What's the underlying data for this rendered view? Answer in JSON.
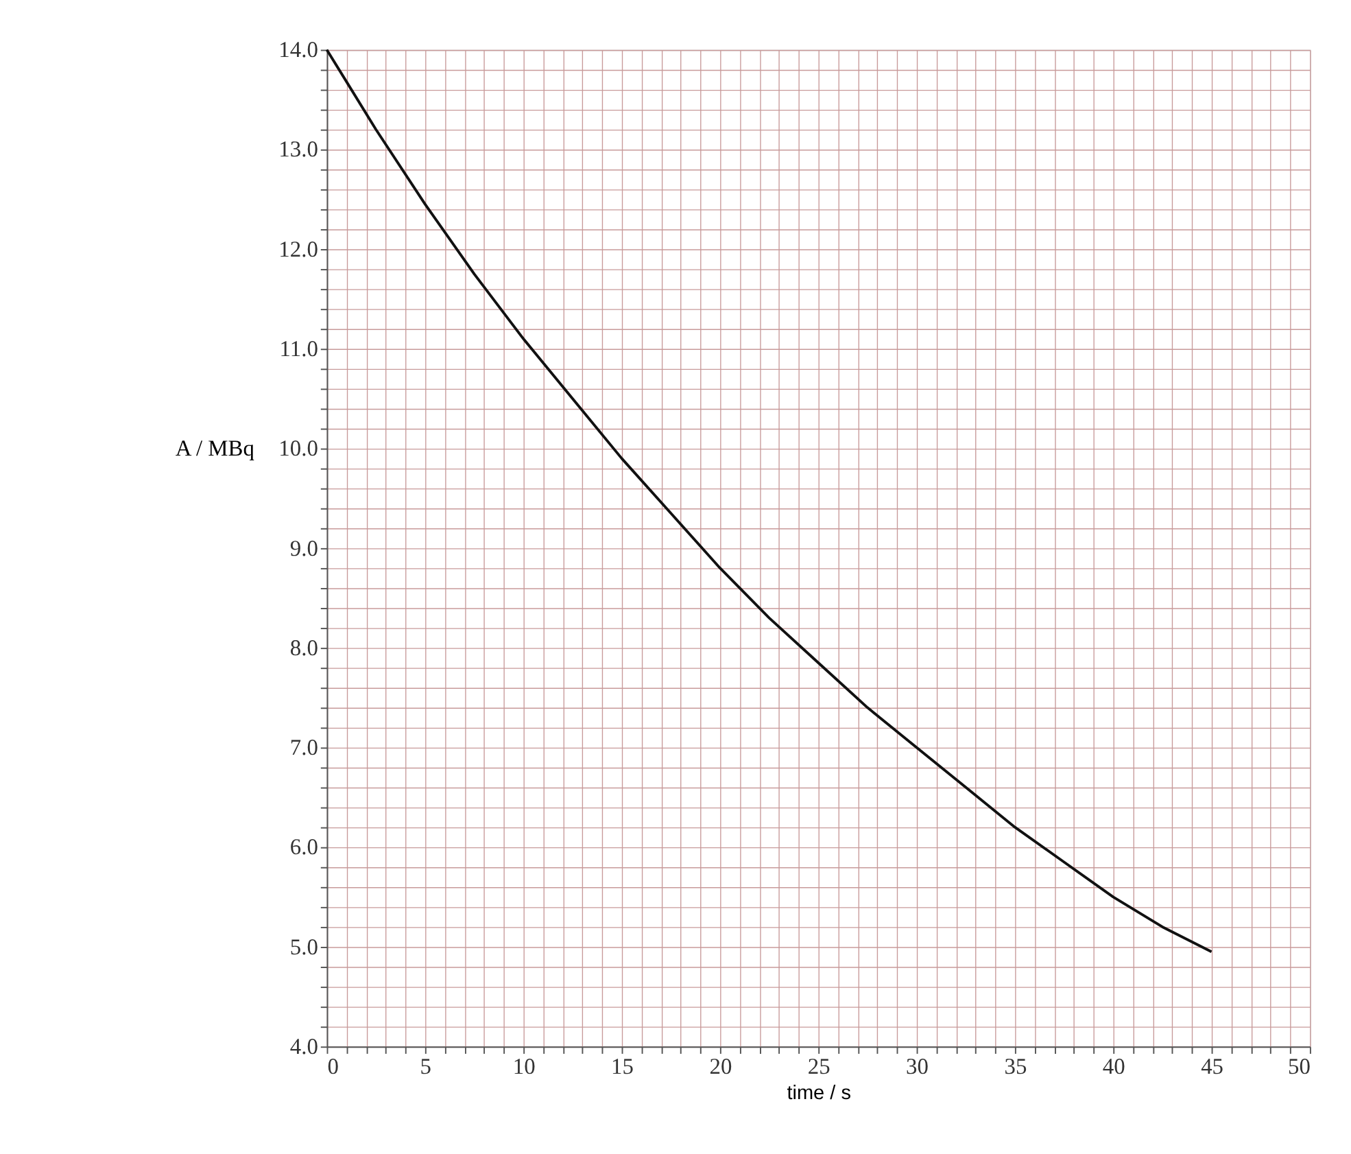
{
  "chart_data": {
    "type": "line",
    "xlabel": "time / s",
    "ylabel": "A / MBq",
    "x": [
      0,
      2.5,
      5,
      7.5,
      10,
      12.5,
      15,
      17.5,
      20,
      22.5,
      25,
      27.5,
      30,
      32.5,
      35,
      37.5,
      40,
      42.5,
      45
    ],
    "series": [
      {
        "color": "#111111",
        "values": [
          14.0,
          13.2,
          12.45,
          11.75,
          11.1,
          10.5,
          9.9,
          9.35,
          8.8,
          8.3,
          7.85,
          7.4,
          7.0,
          6.6,
          6.2,
          5.85,
          5.5,
          5.2,
          4.95
        ]
      }
    ],
    "xlim": [
      0,
      50
    ],
    "ylim": [
      4,
      14
    ],
    "xticks": [
      0,
      {
        "value": 1,
        "label": null
      },
      {
        "value": 2,
        "label": null
      },
      {
        "value": 3,
        "label": null
      },
      {
        "value": 4,
        "label": null
      },
      5,
      {
        "value": 6,
        "label": null
      },
      {
        "value": 7,
        "label": null
      },
      {
        "value": 8,
        "label": null
      },
      {
        "value": 9,
        "label": null
      },
      10,
      {
        "value": 11,
        "label": null
      },
      {
        "value": 12,
        "label": null
      },
      {
        "value": 13,
        "label": null
      },
      {
        "value": 14,
        "label": null
      },
      15,
      {
        "value": 16,
        "label": null
      },
      {
        "value": 17,
        "label": null
      },
      {
        "value": 18,
        "label": null
      },
      {
        "value": 19,
        "label": null
      },
      20,
      {
        "value": 21,
        "label": null
      },
      {
        "value": 22,
        "label": null
      },
      {
        "value": 23,
        "label": null
      },
      {
        "value": 24,
        "label": null
      },
      25,
      {
        "value": 26,
        "label": null
      },
      {
        "value": 27,
        "label": null
      },
      {
        "value": 28,
        "label": null
      },
      {
        "value": 29,
        "label": null
      },
      30,
      {
        "value": 31,
        "label": null
      },
      {
        "value": 32,
        "label": null
      },
      {
        "value": 33,
        "label": null
      },
      {
        "value": 34,
        "label": null
      },
      35,
      {
        "value": 36,
        "label": null
      },
      {
        "value": 37,
        "label": null
      },
      {
        "value": 38,
        "label": null
      },
      {
        "value": 39,
        "label": null
      },
      40,
      {
        "value": 41,
        "label": null
      },
      {
        "value": 42,
        "label": null
      },
      {
        "value": 43,
        "label": null
      },
      {
        "value": 44,
        "label": null
      },
      45,
      {
        "value": 46,
        "label": null
      },
      {
        "value": 47,
        "label": null
      },
      {
        "value": 48,
        "label": null
      },
      {
        "value": 49,
        "label": null
      },
      50
    ],
    "yticks": [
      {
        "value": 4,
        "label": "4.0"
      },
      {
        "value": 4.2,
        "label": null
      },
      {
        "value": 4.4,
        "label": null
      },
      {
        "value": 4.6,
        "label": null
      },
      {
        "value": 4.8,
        "label": null
      },
      {
        "value": 5,
        "label": "5.0"
      },
      {
        "value": 5.2,
        "label": null
      },
      {
        "value": 5.4,
        "label": null
      },
      {
        "value": 5.6,
        "label": null
      },
      {
        "value": 5.8,
        "label": null
      },
      {
        "value": 6,
        "label": "6.0"
      },
      {
        "value": 6.2,
        "label": null
      },
      {
        "value": 6.4,
        "label": null
      },
      {
        "value": 6.6,
        "label": null
      },
      {
        "value": 6.8,
        "label": null
      },
      {
        "value": 7,
        "label": "7.0"
      },
      {
        "value": 7.2,
        "label": null
      },
      {
        "value": 7.4,
        "label": null
      },
      {
        "value": 7.6,
        "label": null
      },
      {
        "value": 7.8,
        "label": null
      },
      {
        "value": 8,
        "label": "8.0"
      },
      {
        "value": 8.2,
        "label": null
      },
      {
        "value": 8.4,
        "label": null
      },
      {
        "value": 8.6,
        "label": null
      },
      {
        "value": 8.8,
        "label": null
      },
      {
        "value": 9,
        "label": "9.0"
      },
      {
        "value": 9.2,
        "label": null
      },
      {
        "value": 9.4,
        "label": null
      },
      {
        "value": 9.6,
        "label": null
      },
      {
        "value": 9.8,
        "label": null
      },
      {
        "value": 10,
        "label": "10.0"
      },
      {
        "value": 10.2,
        "label": null
      },
      {
        "value": 10.4,
        "label": null
      },
      {
        "value": 10.6,
        "label": null
      },
      {
        "value": 10.8,
        "label": null
      },
      {
        "value": 11,
        "label": "11.0"
      },
      {
        "value": 11.2,
        "label": null
      },
      {
        "value": 11.4,
        "label": null
      },
      {
        "value": 11.6,
        "label": null
      },
      {
        "value": 11.8,
        "label": null
      },
      {
        "value": 12,
        "label": "12.0"
      },
      {
        "value": 12.2,
        "label": null
      },
      {
        "value": 12.4,
        "label": null
      },
      {
        "value": 12.6,
        "label": null
      },
      {
        "value": 12.8,
        "label": null
      },
      {
        "value": 13,
        "label": "13.0"
      },
      {
        "value": 13.2,
        "label": null
      },
      {
        "value": 13.4,
        "label": null
      },
      {
        "value": 13.6,
        "label": null
      },
      {
        "value": 13.8,
        "label": null
      },
      {
        "value": 14,
        "label": "14.0"
      }
    ],
    "grid": true,
    "marker": "none",
    "line_style": "solid"
  }
}
